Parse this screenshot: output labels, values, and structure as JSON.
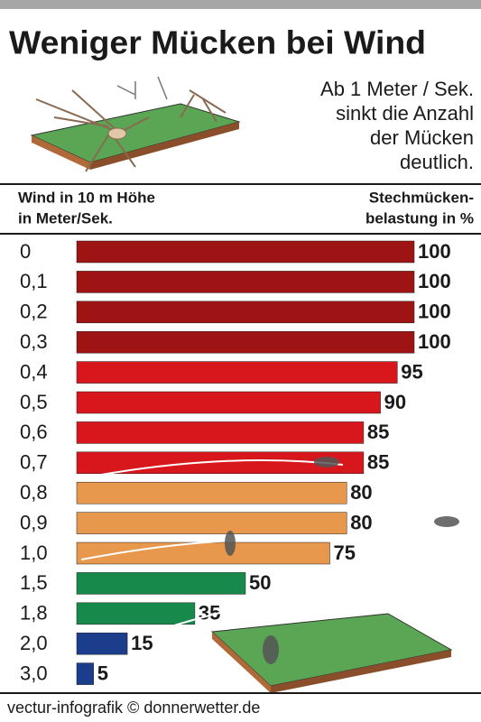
{
  "chart_data": {
    "type": "bar",
    "title": "Weniger Mücken bei Wind",
    "annotation": [
      "Ab 1 Meter / Sek.",
      "sinkt die Anzahl",
      "der Mücken",
      "deutlich."
    ],
    "y_label": [
      "Wind in 10 m Höhe",
      "in Meter/Sek."
    ],
    "x_label": [
      "Stechmücken-",
      "belastung in %"
    ],
    "categories": [
      "0",
      "0,1",
      "0,2",
      "0,3",
      "0,4",
      "0,5",
      "0,6",
      "0,7",
      "0,8",
      "0,9",
      "1,0",
      "1,5",
      "1,8",
      "2,0",
      "3,0"
    ],
    "values": [
      100,
      100,
      100,
      100,
      95,
      90,
      85,
      85,
      80,
      80,
      75,
      50,
      35,
      15,
      5
    ],
    "colors": [
      "#9e1313",
      "#9e1313",
      "#9e1313",
      "#9e1313",
      "#d8171d",
      "#d8171d",
      "#d8171d",
      "#d8171d",
      "#e8984c",
      "#e8984c",
      "#e8984c",
      "#17894a",
      "#17894a",
      "#1b3d8c",
      "#1b3d8c"
    ],
    "source": "vectur-infografik © donnerwetter.de"
  }
}
